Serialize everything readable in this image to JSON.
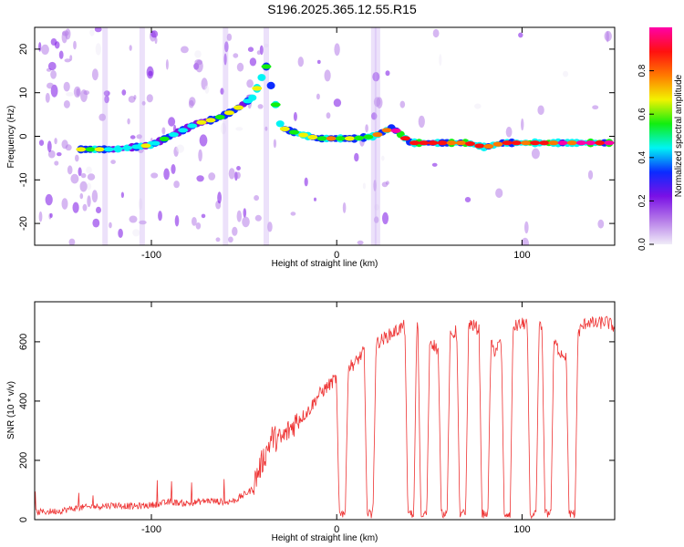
{
  "title": "S196.2025.365.12.55.R15",
  "chart_data": [
    {
      "type": "heatmap",
      "name": "spectrogram",
      "title": "S196.2025.365.12.55.R15",
      "xlabel": "Height of straight line (km)",
      "ylabel": "Frequency (Hz)",
      "xlim": [
        -163,
        150
      ],
      "ylim": [
        -25,
        25
      ],
      "xticks": [
        -100,
        0,
        100
      ],
      "xtick_labels": [
        "-100",
        "0",
        "100"
      ],
      "yticks": [
        -20,
        -10,
        0,
        10,
        20
      ],
      "ytick_labels": [
        "-20",
        "-10",
        "0",
        "10",
        "20"
      ],
      "ridge": {
        "x": [
          -135,
          -120,
          -100,
          -85,
          -75,
          -65,
          -55,
          -45,
          -38,
          -30,
          -20,
          -10,
          0,
          10,
          20,
          30,
          40,
          50,
          60,
          70,
          80,
          90,
          100,
          110,
          120,
          130,
          140,
          148
        ],
        "y": [
          -3,
          -3,
          -2,
          1,
          3,
          4,
          6,
          9,
          16,
          2,
          0.5,
          -0.5,
          -0.5,
          -0.5,
          0,
          2,
          -1.5,
          -1.5,
          -1.5,
          -1.5,
          -2.5,
          -1.5,
          -1.5,
          -1.5,
          -1.5,
          -1.5,
          -1.5,
          -1.5
        ]
      },
      "colorbar": {
        "label": "Normalized spectral amplitude",
        "range": [
          0.0,
          1.0
        ],
        "ticks": [
          0.0,
          0.2,
          0.4,
          0.6,
          0.8
        ],
        "tick_labels": [
          "0.0",
          "0.2",
          "0.4",
          "0.6",
          "0.8"
        ],
        "colors": [
          "#f0ecf8",
          "#b57be8",
          "#7a10e6",
          "#0b2bff",
          "#00f4f4",
          "#12ee10",
          "#f2f200",
          "#ff7a00",
          "#ff1010",
          "#ff00a8"
        ]
      }
    },
    {
      "type": "line",
      "name": "snr",
      "xlabel": "Height of straight line (km)",
      "ylabel": "SNR (10 * v/v)",
      "xlim": [
        -163,
        150
      ],
      "ylim": [
        0,
        735
      ],
      "xticks": [
        -100,
        0,
        100
      ],
      "xtick_labels": [
        "-100",
        "0",
        "100"
      ],
      "yticks": [
        0,
        200,
        400,
        600
      ],
      "ytick_labels": [
        "0",
        "200",
        "400",
        "600"
      ],
      "color": "#ee3333",
      "series": {
        "name": "SNR",
        "x": [
          -163,
          -150,
          -140,
          -130,
          -120,
          -110,
          -100,
          -90,
          -80,
          -70,
          -60,
          -55,
          -50,
          -45,
          -40,
          -35,
          -30,
          -25,
          -20,
          -15,
          -10,
          -5,
          0,
          5,
          10,
          15,
          20,
          25,
          30,
          35,
          40,
          45,
          50,
          55,
          60,
          65,
          70,
          75,
          80,
          85,
          90,
          95,
          100,
          105,
          110,
          115,
          120,
          125,
          130,
          135,
          140,
          145,
          150
        ],
        "y": [
          20,
          25,
          35,
          40,
          45,
          40,
          45,
          55,
          50,
          60,
          55,
          60,
          80,
          100,
          180,
          260,
          250,
          290,
          330,
          360,
          410,
          440,
          470,
          500,
          520,
          560,
          580,
          600,
          620,
          640,
          650,
          640,
          600,
          560,
          600,
          630,
          660,
          640,
          620,
          560,
          600,
          640,
          650,
          660,
          640,
          620,
          560,
          540,
          620,
          660,
          650,
          660,
          640
        ]
      },
      "dropouts": {
        "x": [
          3,
          18,
          40,
          47,
          58,
          68,
          80,
          92,
          106,
          114,
          127
        ],
        "y": [
          30,
          30,
          10,
          10,
          10,
          10,
          10,
          10,
          10,
          10,
          10
        ]
      }
    }
  ]
}
